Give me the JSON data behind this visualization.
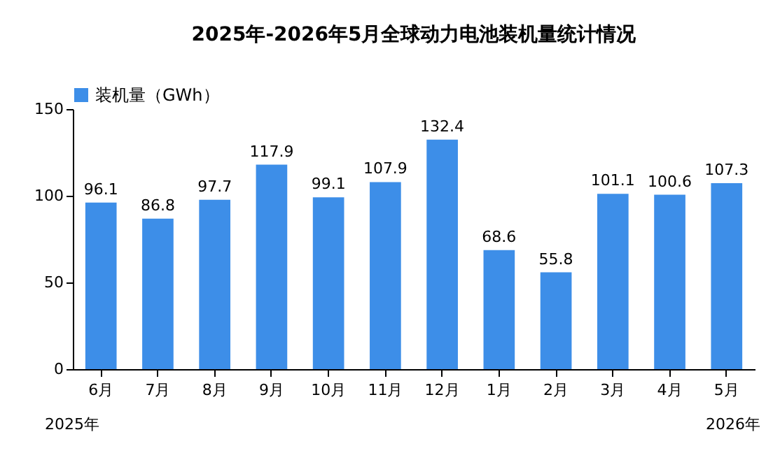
{
  "chart_data": {
    "type": "bar",
    "title": "2025年-2026年5月全球动力电池装机量统计情况",
    "categories": [
      "6月",
      "7月",
      "8月",
      "9月",
      "10月",
      "11月",
      "12月",
      "1月",
      "2月",
      "3月",
      "4月",
      "5月"
    ],
    "series": [
      {
        "name": "装机量（GWh）",
        "color": "#3d8ee8",
        "values": [
          96.1,
          86.8,
          97.7,
          117.9,
          99.1,
          107.9,
          132.4,
          68.6,
          55.8,
          101.1,
          100.6,
          107.3
        ]
      }
    ],
    "ylim": [
      0,
      150
    ],
    "yticks": [
      0,
      50,
      100,
      150
    ],
    "data_labels": true,
    "legend": "top",
    "annotations": [
      "2025年",
      "2026年"
    ]
  }
}
